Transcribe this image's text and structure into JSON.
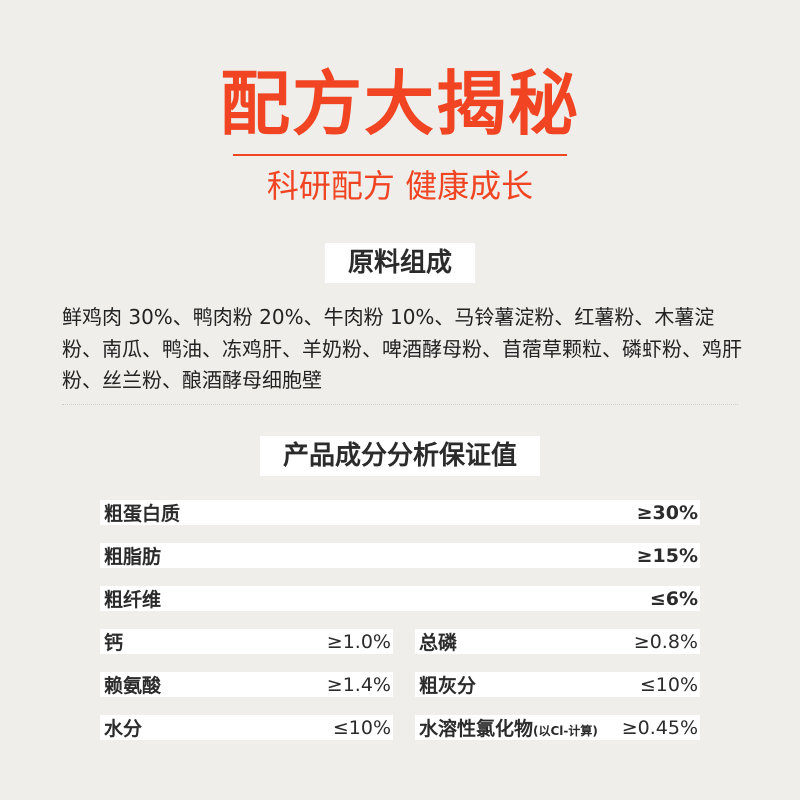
{
  "header": {
    "title": "配方大揭秘",
    "subtitle": "科研配方 健康成长",
    "accent_color": "#f04422"
  },
  "ingredients": {
    "heading": "原料组成",
    "text": "鲜鸡肉 30%、鸭肉粉 20%、牛肉粉 10%、马铃薯淀粉、红薯粉、木薯淀粉、南瓜、鸭油、冻鸡肝、羊奶粉、啤酒酵母粉、苜蓿草颗粒、磷虾粉、鸡肝粉、丝兰粉、酿酒酵母细胞壁"
  },
  "analysis": {
    "heading": "产品成分分析保证值",
    "full_rows": [
      {
        "label": "粗蛋白质",
        "value": "≥30%"
      },
      {
        "label": "粗脂肪",
        "value": "≥15%"
      },
      {
        "label": "粗纤维",
        "value": "≤6%"
      }
    ],
    "half_rows": [
      {
        "label": "钙",
        "value": "≥1.0%"
      },
      {
        "label": "总磷",
        "value": "≥0.8%"
      },
      {
        "label": "赖氨酸",
        "value": "≥1.4%"
      },
      {
        "label": "粗灰分",
        "value": "≤10%"
      },
      {
        "label": "水分",
        "value": "≤10%"
      },
      {
        "label": "水溶性氯化物",
        "note": "(以Cl-计算)",
        "value": "≥0.45%"
      }
    ]
  }
}
